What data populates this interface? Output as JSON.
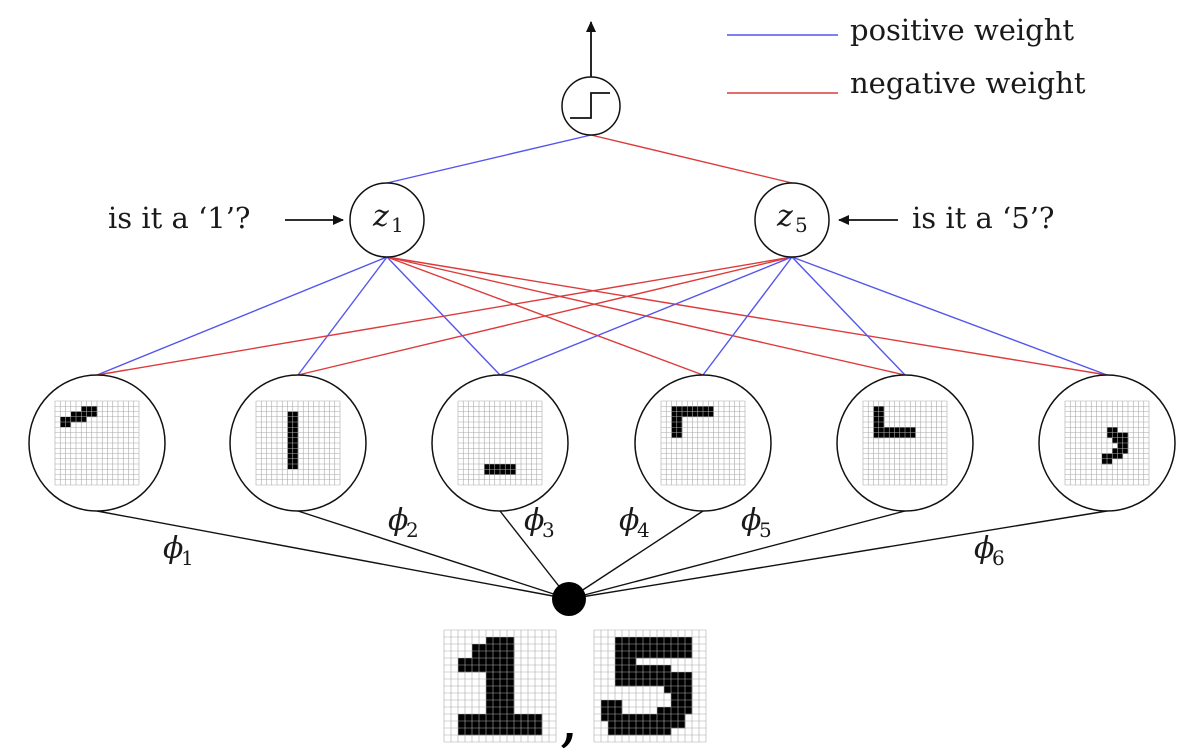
{
  "legend": {
    "positive": {
      "label": "positive weight",
      "color": "#5555ee"
    },
    "negative": {
      "label": "negative weight",
      "color": "#dd3b3b"
    }
  },
  "hidden": [
    {
      "id": "z1",
      "symbol": "z",
      "sub": "1",
      "question": "is it a ‘1’?"
    },
    {
      "id": "z5",
      "symbol": "z",
      "sub": "5",
      "question": "is it a ‘5’?"
    }
  ],
  "features": [
    {
      "symbol": "ϕ",
      "sub": "1"
    },
    {
      "symbol": "ϕ",
      "sub": "2"
    },
    {
      "symbol": "ϕ",
      "sub": "3"
    },
    {
      "symbol": "ϕ",
      "sub": "4"
    },
    {
      "symbol": "ϕ",
      "sub": "5"
    },
    {
      "symbol": "ϕ",
      "sub": "6"
    }
  ],
  "weights": {
    "output": [
      "positive",
      "negative"
    ],
    "z1": [
      "positive",
      "positive",
      "positive",
      "negative",
      "negative",
      "negative"
    ],
    "z5": [
      "negative",
      "negative",
      "positive",
      "positive",
      "positive",
      "positive"
    ]
  },
  "input_separator": ","
}
